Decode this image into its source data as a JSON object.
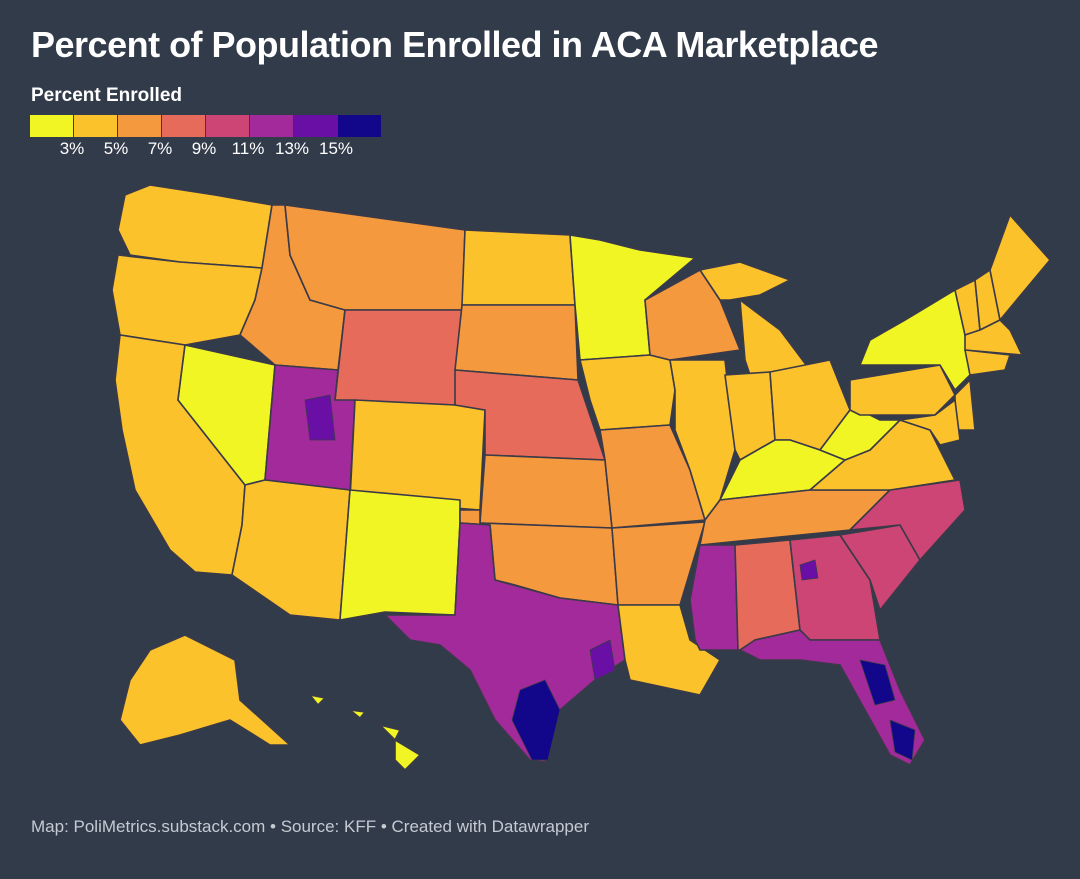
{
  "title": "Percent of Population Enrolled in ACA Marketplace",
  "legend": {
    "title": "Percent Enrolled",
    "colors": [
      "#f2f524",
      "#fbc22c",
      "#f5993f",
      "#e76b5a",
      "#cd4575",
      "#a22a9a",
      "#6a0fa6",
      "#12068a"
    ],
    "ticks": [
      "3%",
      "5%",
      "7%",
      "9%",
      "11%",
      "13%",
      "15%"
    ]
  },
  "footer": "Map: PoliMetrics.substack.com • Source: KFF • Created with Datawrapper",
  "map": {
    "type": "choropleth",
    "unit": "percent of population enrolled (binned)",
    "state_dominant_bin": {
      "WA": 1,
      "OR": 1,
      "CA": 1,
      "NV": 0,
      "ID": 2,
      "MT": 2,
      "WY": 3,
      "UT": 5,
      "CO": 1,
      "AZ": 1,
      "NM": 0,
      "ND": 1,
      "SD": 2,
      "NE": 3,
      "KS": 2,
      "OK": 2,
      "TX": 5,
      "MN": 0,
      "IA": 1,
      "MO": 2,
      "AR": 2,
      "LA": 1,
      "WI": 2,
      "IL": 1,
      "MI": 1,
      "IN": 1,
      "OH": 1,
      "KY": 0,
      "TN": 2,
      "MS": 5,
      "AL": 3,
      "GA": 4,
      "FL": 5,
      "SC": 4,
      "NC": 4,
      "VA": 1,
      "WV": 0,
      "PA": 1,
      "NY": 0,
      "VT": 1,
      "NH": 1,
      "ME": 1,
      "MA": 1,
      "CT": 1,
      "NJ": 1,
      "MD": 1,
      "AK": 1,
      "HI": 0
    },
    "highlight_regions_bin": {
      "south-texas": 7,
      "houston": 6,
      "central-florida": 7,
      "south-florida": 7,
      "west-utah": 6,
      "atlanta": 6
    }
  }
}
